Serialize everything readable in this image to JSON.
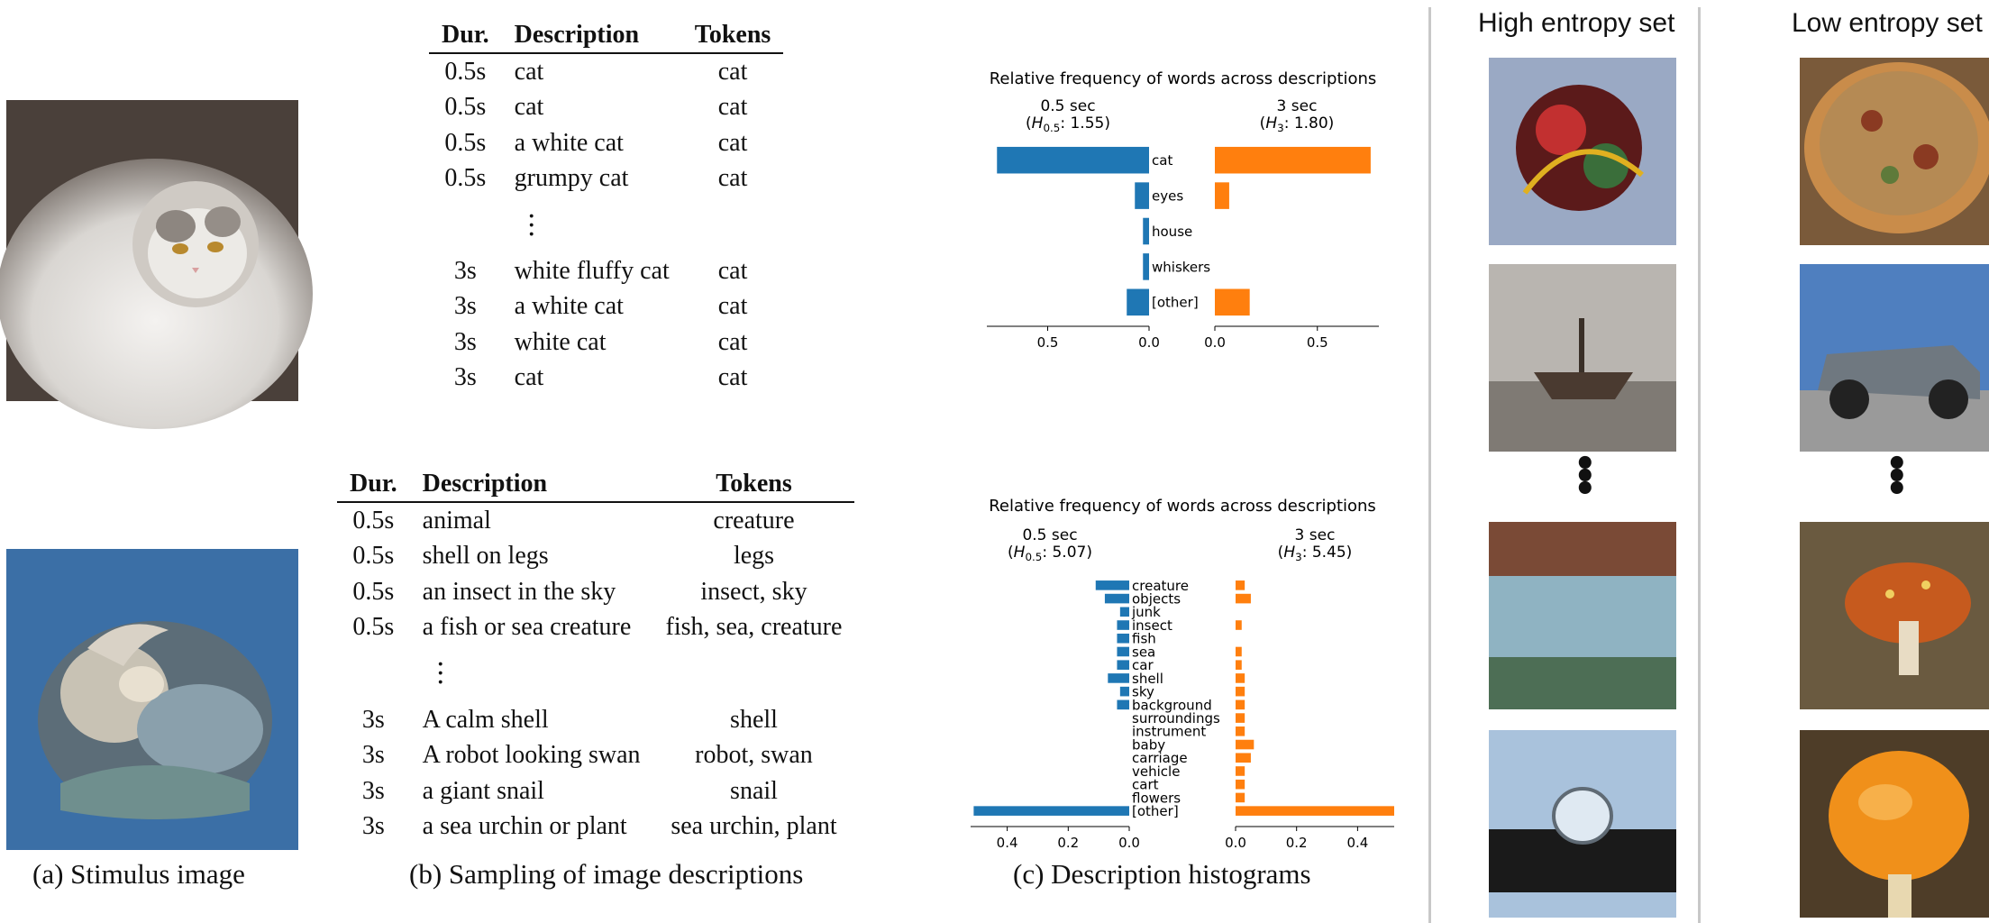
{
  "colors": {
    "series_0_5": "#1f77b4",
    "series_3": "#ff7f0e"
  },
  "captions": {
    "a": "(a) Stimulus image",
    "b": "(b) Sampling of image descriptions",
    "c": "(c) Description histograms"
  },
  "sets": {
    "high": "High entropy set",
    "low": "Low entropy set"
  },
  "table1": {
    "headers": [
      "Dur.",
      "Description",
      "Tokens"
    ],
    "rows_top": [
      [
        "0.5s",
        "cat",
        "cat"
      ],
      [
        "0.5s",
        "cat",
        "cat"
      ],
      [
        "0.5s",
        "a white cat",
        "cat"
      ],
      [
        "0.5s",
        "grumpy cat",
        "cat"
      ]
    ],
    "rows_bottom": [
      [
        "3s",
        "white fluffy cat",
        "cat"
      ],
      [
        "3s",
        "a white cat",
        "cat"
      ],
      [
        "3s",
        "white cat",
        "cat"
      ],
      [
        "3s",
        "cat",
        "cat"
      ]
    ]
  },
  "table2": {
    "headers": [
      "Dur.",
      "Description",
      "Tokens"
    ],
    "rows_top": [
      [
        "0.5s",
        "animal",
        "creature"
      ],
      [
        "0.5s",
        "shell on legs",
        "legs"
      ],
      [
        "0.5s",
        "an insect in the sky",
        "insect, sky"
      ],
      [
        "0.5s",
        "a fish or sea creature",
        "fish, sea, creature"
      ]
    ],
    "rows_bottom": [
      [
        "3s",
        "A calm shell",
        "shell"
      ],
      [
        "3s",
        "A robot looking swan",
        "robot, swan"
      ],
      [
        "3s",
        "a giant snail",
        "snail"
      ],
      [
        "3s",
        "a sea urchin or plant",
        "sea urchin, plant"
      ]
    ]
  },
  "chart_data": [
    {
      "type": "bar",
      "orientation": "horizontal-mirrored",
      "title": "Relative frequency of words across descriptions",
      "categories": [
        "cat",
        "eyes",
        "house",
        "whiskers",
        "[other]"
      ],
      "series": [
        {
          "name": "0.5 sec",
          "entropy_label": "(H0.5: 1.55)",
          "values": [
            0.75,
            0.07,
            0.03,
            0.03,
            0.11
          ]
        },
        {
          "name": "3 sec",
          "entropy_label": "(H3: 1.80)",
          "values": [
            0.76,
            0.07,
            0.0,
            0.0,
            0.17
          ]
        }
      ],
      "left_ticks": [
        "0.5",
        "0.0"
      ],
      "right_ticks": [
        "0.0",
        "0.5"
      ],
      "xlim": [
        0,
        0.8
      ]
    },
    {
      "type": "bar",
      "orientation": "horizontal-mirrored",
      "title": "Relative frequency of words across descriptions",
      "categories": [
        "creature",
        "objects",
        "junk",
        "insect",
        "fish",
        "sea",
        "car",
        "shell",
        "sky",
        "background",
        "surroundings",
        "instrument",
        "baby",
        "carriage",
        "vehicle",
        "cart",
        "flowers",
        "[other]"
      ],
      "series": [
        {
          "name": "0.5 sec",
          "entropy_label": "(H0.5: 5.07)",
          "values": [
            0.11,
            0.08,
            0.03,
            0.04,
            0.04,
            0.04,
            0.04,
            0.07,
            0.03,
            0.04,
            0,
            0,
            0,
            0,
            0,
            0,
            0,
            0.51
          ]
        },
        {
          "name": "3 sec",
          "entropy_label": "(H3: 5.45)",
          "values": [
            0.03,
            0.05,
            0,
            0.02,
            0,
            0.02,
            0.02,
            0.03,
            0.03,
            0.03,
            0.03,
            0.03,
            0.06,
            0.05,
            0.03,
            0.03,
            0.03,
            0.52
          ]
        }
      ],
      "left_ticks": [
        "0.4",
        "0.2",
        "0.0"
      ],
      "right_ticks": [
        "0.0",
        "0.2",
        "0.4"
      ],
      "xlim": [
        0,
        0.52
      ]
    }
  ]
}
